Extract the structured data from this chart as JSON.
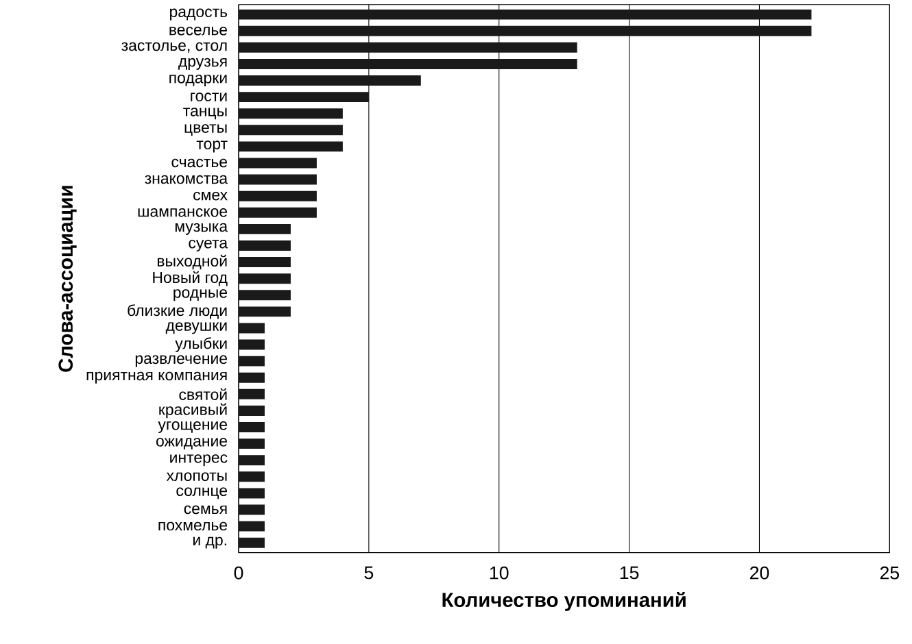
{
  "chart_data": {
    "type": "bar",
    "orientation": "horizontal",
    "xlabel": "Количество упоминаний",
    "ylabel": "Слова-ассоциации",
    "categories": [
      "радость",
      "веселье",
      "застолье, стол",
      "друзья",
      "подарки",
      "гости",
      "танцы",
      "цветы",
      "торт",
      "счастье",
      "знакомства",
      "смех",
      "шампанское",
      "музыка",
      "суета",
      "выходной",
      "Новый год",
      "родные",
      "близкие люди",
      "девушки",
      "улыбки",
      "развлечение",
      "приятная компания",
      "святой",
      "красивый",
      "угощение",
      "ожидание",
      "интерес",
      "хлопоты",
      "солнце",
      "семья",
      "похмелье",
      "и др."
    ],
    "values": [
      22,
      22,
      13,
      13,
      7,
      5,
      4,
      4,
      4,
      3,
      3,
      3,
      3,
      2,
      2,
      2,
      2,
      2,
      2,
      1,
      1,
      1,
      1,
      1,
      1,
      1,
      1,
      1,
      1,
      1,
      1,
      1,
      1
    ],
    "color": "#1a1a1a",
    "xlim": [
      0,
      25
    ],
    "xticks": [
      0,
      5,
      10,
      15,
      20,
      25
    ],
    "grid": "x"
  }
}
